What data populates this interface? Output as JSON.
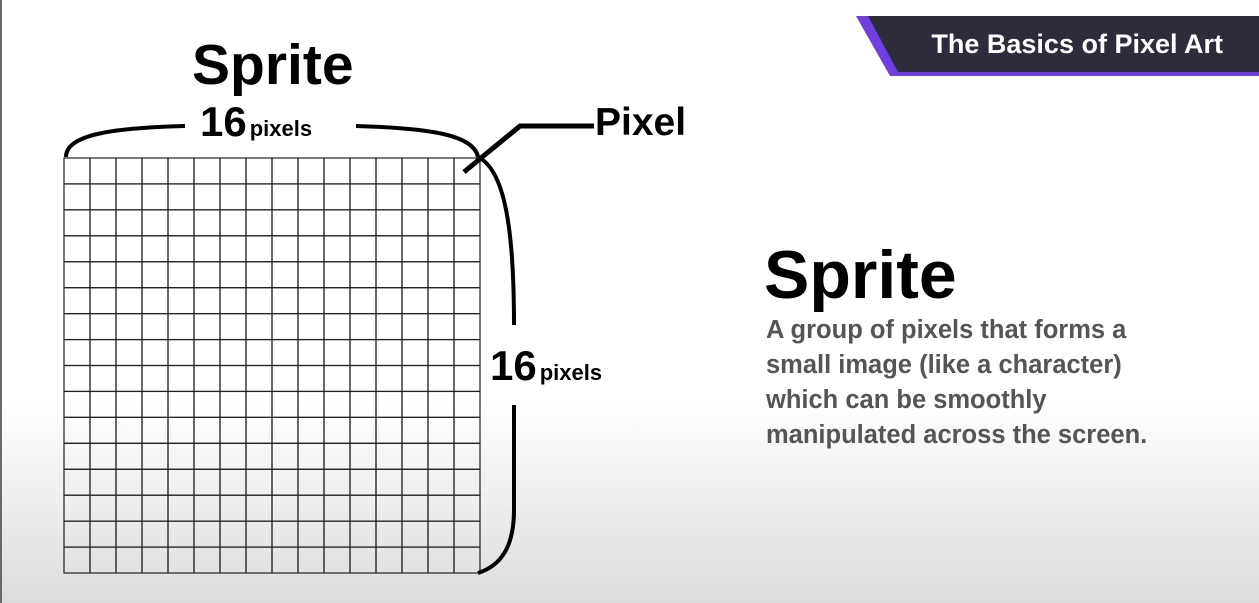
{
  "banner": {
    "title": "The Basics of Pixel Art",
    "accent_color": "#6f3fe0",
    "background_color": "#2c2c3a"
  },
  "diagram": {
    "title": "Sprite",
    "grid_columns": 16,
    "grid_rows": 16,
    "width_label": {
      "value": "16",
      "unit": "pixels"
    },
    "height_label": {
      "value": "16",
      "unit": "pixels"
    },
    "pixel_label": "Pixel"
  },
  "definition": {
    "term": "Sprite",
    "lines": [
      "A group of pixels that forms a",
      "small image (like a character)",
      "which can be smoothly",
      "manipulated across the screen."
    ],
    "text_color": "#555555"
  }
}
